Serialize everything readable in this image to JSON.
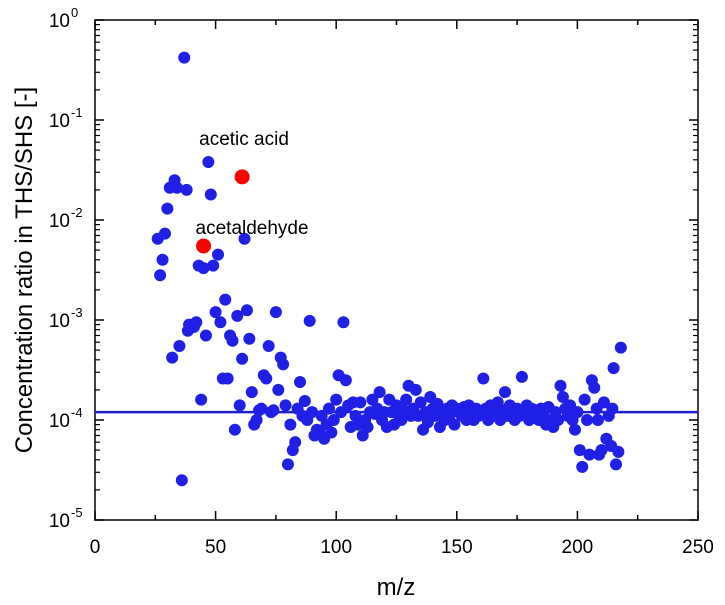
{
  "chart_data": {
    "type": "scatter",
    "xlabel": "m/z",
    "ylabel": "Concentration ratio in THS/SHS [-]",
    "xlim": [
      0,
      250
    ],
    "ylim": [
      1e-05,
      1
    ],
    "yscale": "log",
    "x_ticks": [
      "0",
      "50",
      "100",
      "150",
      "200",
      "250"
    ],
    "y_ticks": [
      {
        "base": "10",
        "exp": "0"
      },
      {
        "base": "10",
        "exp": "-1"
      },
      {
        "base": "10",
        "exp": "-2"
      },
      {
        "base": "10",
        "exp": "-3"
      },
      {
        "base": "10",
        "exp": "-4"
      },
      {
        "base": "10",
        "exp": "-5"
      }
    ],
    "reference_line": {
      "y": 0.00012,
      "color": "#1f1fcf"
    },
    "colors": {
      "points": "#1f1fe6",
      "highlight": "#ff0000"
    },
    "series": [
      {
        "color": "#1f1fe6",
        "points": [
          [
            26,
            0.0065
          ],
          [
            27,
            0.0028
          ],
          [
            28,
            0.004
          ],
          [
            29,
            0.0073
          ],
          [
            30,
            0.013
          ],
          [
            31,
            0.021
          ],
          [
            32,
            0.00042
          ],
          [
            33,
            0.025
          ],
          [
            34,
            0.021
          ],
          [
            35,
            0.00055
          ],
          [
            36,
            2.5e-05
          ],
          [
            37,
            0.42
          ],
          [
            38,
            0.02
          ],
          [
            38.5,
            0.00078
          ],
          [
            39,
            0.0009
          ],
          [
            41,
            0.00085
          ],
          [
            42,
            0.00095
          ],
          [
            43,
            0.0035
          ],
          [
            44,
            0.00016
          ],
          [
            45,
            0.0033
          ],
          [
            46,
            0.0007
          ],
          [
            47,
            0.038
          ],
          [
            48,
            0.018
          ],
          [
            49,
            0.0035
          ],
          [
            50,
            0.0012
          ],
          [
            51,
            0.0045
          ],
          [
            52,
            0.00095
          ],
          [
            53,
            0.00026
          ],
          [
            54,
            0.0016
          ],
          [
            55,
            0.00026
          ],
          [
            56,
            0.0007
          ],
          [
            57,
            0.00062
          ],
          [
            58,
            8e-05
          ],
          [
            59,
            0.0011
          ],
          [
            60,
            0.00014
          ],
          [
            61,
            0.00041
          ],
          [
            62,
            0.0065
          ],
          [
            63,
            0.00125
          ],
          [
            64,
            0.00065
          ],
          [
            65,
            0.00019
          ],
          [
            66,
            9e-05
          ],
          [
            67,
            0.0001
          ],
          [
            68,
            0.000125
          ],
          [
            69,
            0.00013
          ],
          [
            70,
            0.00028
          ],
          [
            71,
            0.00026
          ],
          [
            72,
            0.00055
          ],
          [
            73,
            0.00012
          ],
          [
            74,
            0.000125
          ],
          [
            75,
            0.0012
          ],
          [
            76,
            0.0002
          ],
          [
            77,
            0.00042
          ],
          [
            78,
            0.00036
          ],
          [
            79,
            0.00014
          ],
          [
            80,
            3.6e-05
          ],
          [
            81,
            9e-05
          ],
          [
            82,
            5e-05
          ],
          [
            83,
            6e-05
          ],
          [
            84,
            0.00013
          ],
          [
            85,
            0.00024
          ],
          [
            86,
            0.00011
          ],
          [
            87,
            0.000155
          ],
          [
            88,
            0.0001
          ],
          [
            89,
            0.00098
          ],
          [
            90,
            0.00012
          ],
          [
            91,
            7e-05
          ],
          [
            92,
            8e-05
          ],
          [
            93,
            7.5e-05
          ],
          [
            94,
            0.00011
          ],
          [
            95,
            6.5e-05
          ],
          [
            96,
            9e-05
          ],
          [
            97,
            0.00013
          ],
          [
            98,
            7.5e-05
          ],
          [
            99,
            0.0001
          ],
          [
            100,
            0.00016
          ],
          [
            101,
            0.00028
          ],
          [
            102,
            0.00012
          ],
          [
            103,
            0.00095
          ],
          [
            104,
            0.00025
          ],
          [
            105,
            0.00014
          ],
          [
            106,
            8.5e-05
          ],
          [
            107,
            0.00015
          ],
          [
            108,
            0.00011
          ],
          [
            109,
            9e-05
          ],
          [
            110,
            0.00015
          ],
          [
            111,
            7e-05
          ],
          [
            112,
            0.0001
          ],
          [
            113,
            8.5e-05
          ],
          [
            114,
            0.00012
          ],
          [
            115,
            0.00016
          ],
          [
            116,
            0.000115
          ],
          [
            117,
            0.00013
          ],
          [
            118,
            0.00019
          ],
          [
            119,
            0.0001
          ],
          [
            120,
            0.00012
          ],
          [
            121,
            8.5e-05
          ],
          [
            122,
            0.00016
          ],
          [
            123,
            0.00012
          ],
          [
            124,
            9e-05
          ],
          [
            125,
            0.00014
          ],
          [
            126,
            0.00011
          ],
          [
            127,
            0.0001
          ],
          [
            128,
            0.000125
          ],
          [
            129,
            0.00016
          ],
          [
            130,
            0.00022
          ],
          [
            131,
            0.00011
          ],
          [
            132,
            0.00013
          ],
          [
            133,
            0.0002
          ],
          [
            134,
            0.00011
          ],
          [
            135,
            0.00015
          ],
          [
            136,
            8e-05
          ],
          [
            137,
            0.00012
          ],
          [
            138,
            9.5e-05
          ],
          [
            139,
            0.00017
          ],
          [
            140,
            0.00013
          ],
          [
            141,
            0.00011
          ],
          [
            142,
            0.000145
          ],
          [
            143,
            8.5e-05
          ],
          [
            144,
            0.00012
          ],
          [
            145,
            0.0001
          ],
          [
            146,
            0.00013
          ],
          [
            147,
            0.00011
          ],
          [
            148,
            0.00014
          ],
          [
            149,
            9e-05
          ],
          [
            150,
            0.00013
          ],
          [
            151,
            0.00012
          ],
          [
            152,
            0.00011
          ],
          [
            153,
            0.000135
          ],
          [
            154,
            0.0001
          ],
          [
            155,
            0.00014
          ],
          [
            156,
            0.00012
          ],
          [
            157,
            0.0001
          ],
          [
            158,
            0.00013
          ],
          [
            159,
            0.00011
          ],
          [
            160,
            0.00012
          ],
          [
            161,
            0.00026
          ],
          [
            162,
            0.00013
          ],
          [
            163,
            0.0001
          ],
          [
            164,
            0.00014
          ],
          [
            165,
            0.00012
          ],
          [
            166,
            0.00011
          ],
          [
            167,
            0.00015
          ],
          [
            168,
            0.0001
          ],
          [
            169,
            0.000125
          ],
          [
            170,
            0.00019
          ],
          [
            171,
            0.00011
          ],
          [
            172,
            0.00014
          ],
          [
            173,
            0.00012
          ],
          [
            174,
            0.0001
          ],
          [
            175,
            0.00013
          ],
          [
            176,
            0.00011
          ],
          [
            177,
            0.00027
          ],
          [
            178,
            0.00012
          ],
          [
            179,
            0.00014
          ],
          [
            180,
            0.0001
          ],
          [
            181,
            0.00013
          ],
          [
            182,
            0.00011
          ],
          [
            183,
            0.000125
          ],
          [
            184,
            0.0001
          ],
          [
            185,
            0.00013
          ],
          [
            186,
            0.00011
          ],
          [
            187,
            9e-05
          ],
          [
            188,
            0.000135
          ],
          [
            189,
            0.0001
          ],
          [
            190,
            8.5e-05
          ],
          [
            191,
            0.00012
          ],
          [
            192,
            0.0001
          ],
          [
            193,
            0.00022
          ],
          [
            194,
            0.00017
          ],
          [
            195,
            0.00013
          ],
          [
            196,
            0.00011
          ],
          [
            197,
            0.00014
          ],
          [
            198,
            0.0001
          ],
          [
            199,
            8e-05
          ],
          [
            200,
            0.00012
          ],
          [
            201,
            5e-05
          ],
          [
            202,
            3.4e-05
          ],
          [
            203,
            0.00016
          ],
          [
            204,
            0.0001
          ],
          [
            205,
            4.5e-05
          ],
          [
            206,
            0.00025
          ],
          [
            207,
            0.00021
          ],
          [
            208,
            0.00013
          ],
          [
            209,
            4.5e-05
          ],
          [
            210,
            5e-05
          ],
          [
            211,
            0.00015
          ],
          [
            212,
            6.5e-05
          ],
          [
            213,
            0.00011
          ],
          [
            214,
            5.5e-05
          ],
          [
            215,
            0.00033
          ],
          [
            216,
            3.6e-05
          ],
          [
            217,
            4.8e-05
          ],
          [
            218,
            0.00053
          ],
          [
            214.5,
            0.00013
          ],
          [
            208.5,
            0.0001
          ]
        ]
      },
      {
        "color": "#ff0000",
        "points": [
          [
            45,
            0.0055
          ],
          [
            61,
            0.027
          ]
        ]
      }
    ],
    "annotations": [
      {
        "text": "acetic acid",
        "x": 61,
        "y": 0.027,
        "anchor": "above"
      },
      {
        "text": "acetaldehyde",
        "x": 45,
        "y": 0.0055,
        "anchor": "above-right"
      }
    ]
  }
}
